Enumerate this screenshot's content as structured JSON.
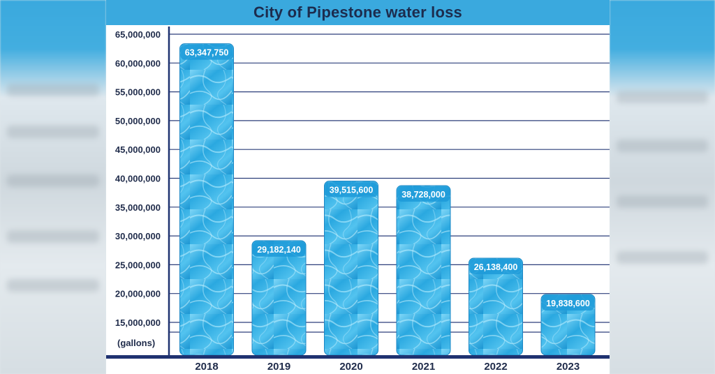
{
  "chart_data": {
    "type": "bar",
    "title": "City of Pipestone water loss",
    "ylabel": "(gallons)",
    "categories": [
      "2018",
      "2019",
      "2020",
      "2021",
      "2022",
      "2023"
    ],
    "values": [
      63347750,
      29182140,
      39515600,
      38728000,
      26138400,
      19838600
    ],
    "value_labels": [
      "63,347,750",
      "29,182,140",
      "39,515,600",
      "38,728,000",
      "26,138,400",
      "19,838,600"
    ],
    "yticks": [
      15000000,
      20000000,
      25000000,
      30000000,
      35000000,
      40000000,
      45000000,
      50000000,
      55000000,
      60000000,
      65000000
    ],
    "ytick_labels": [
      "15,000,000",
      "20,000,000",
      "25,000,000",
      "30,000,000",
      "35,000,000",
      "40,000,000",
      "45,000,000",
      "50,000,000",
      "55,000,000",
      "60,000,000",
      "65,000,000"
    ],
    "ylim": [
      10000000,
      68000000
    ],
    "grid": true,
    "colors": {
      "bar": "#29a6df",
      "bar_light": "#6fd0f5",
      "title_bg": "#3aa9de",
      "axis": "#1f3270",
      "text": "#1f2b4a"
    }
  }
}
